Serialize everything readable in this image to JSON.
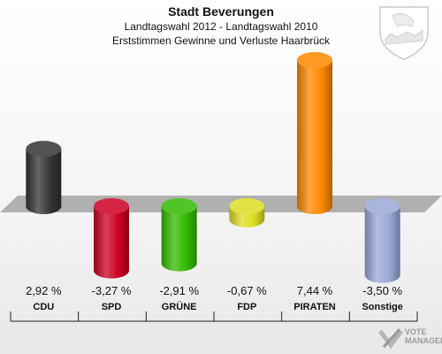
{
  "title": "Stadt Beverungen",
  "subtitle1": "Landtagswahl 2012 - Landtagswahl 2010",
  "subtitle2": "Erststimmen Gewinne und Verluste Haarbrück",
  "watermark": {
    "line1": "VOTE",
    "line2": "MANAGER"
  },
  "chart_data": {
    "type": "bar",
    "categories": [
      "CDU",
      "SPD",
      "GRÜNE",
      "FDP",
      "PIRATEN",
      "Sonstige"
    ],
    "values": [
      2.92,
      -3.27,
      -2.91,
      -0.67,
      7.44,
      -3.5
    ],
    "value_labels": [
      "2,92 %",
      "-3,27 %",
      "-2,91 %",
      "-0,67 %",
      "7,44 %",
      "-3,50 %"
    ],
    "colors": [
      "#333333",
      "#cc0022",
      "#33bb00",
      "#dddd22",
      "#ff8800",
      "#99a8d6"
    ],
    "grid": false,
    "legend": "none"
  }
}
